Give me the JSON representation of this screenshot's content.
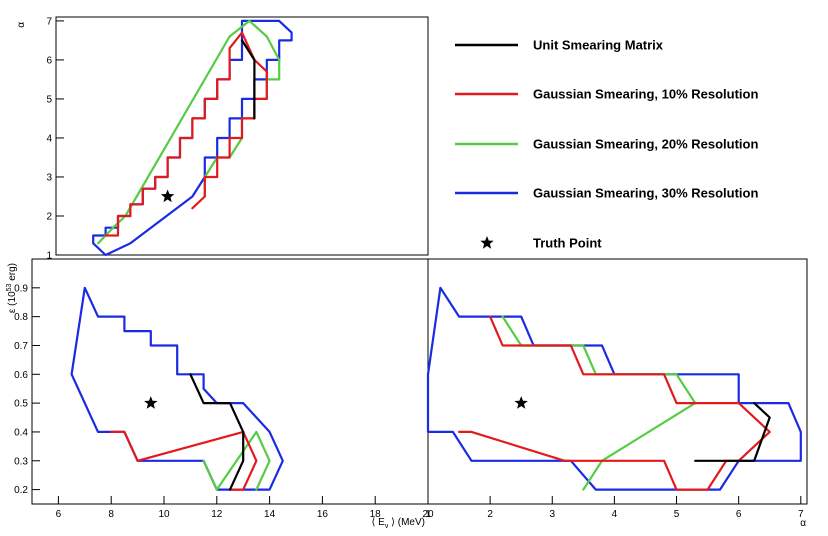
{
  "chart_data": [
    {
      "type": "line",
      "panel": "top-left",
      "xlabel": "",
      "ylabel": "α",
      "xlim": [
        5,
        20
      ],
      "ylim": [
        1,
        7.1
      ],
      "y_ticks": [
        "1",
        "2",
        "3",
        "4",
        "5",
        "6",
        "7"
      ],
      "series": [
        {
          "name": "Unit Smearing Matrix",
          "color": "#000000",
          "x": [
            12.5,
            13.0,
            13.0
          ],
          "y": [
            6.5,
            6.0,
            4.5
          ]
        },
        {
          "name": "Gaussian Smearing, 10% Resolution",
          "color": "#e31a1c",
          "x": [
            7.0,
            7.5,
            7.5,
            8.0,
            8.0,
            8.5,
            8.5,
            9.0,
            9.0,
            9.5,
            9.5,
            10.0,
            10.0,
            10.5,
            10.5,
            11.0,
            11.0,
            11.5,
            11.5,
            12.0,
            12.0,
            12.5,
            13.0,
            13.5,
            13.5,
            13.0,
            13.0,
            12.5,
            12.5,
            12.0,
            12.0,
            11.5,
            11.5,
            11.0,
            11.0,
            10.5
          ],
          "y": [
            1.5,
            1.5,
            2.0,
            2.0,
            2.3,
            2.3,
            2.7,
            2.7,
            3.0,
            3.0,
            3.5,
            3.5,
            4.0,
            4.0,
            4.5,
            4.5,
            5.0,
            5.0,
            5.5,
            5.5,
            6.3,
            6.7,
            6.0,
            5.7,
            5.0,
            5.0,
            4.5,
            4.5,
            4.0,
            4.0,
            3.5,
            3.5,
            3.0,
            3.0,
            2.5,
            2.2
          ]
        },
        {
          "name": "Gaussian Smearing, 20% Resolution",
          "color": "#55cc44",
          "x": [
            6.7,
            7.3,
            7.8,
            12.0,
            12.8,
            13.5,
            14.0,
            14.0,
            13.5,
            13.5,
            13.0,
            13.0,
            12.5,
            12.5,
            12.0,
            11.5,
            11.0,
            11.0
          ],
          "y": [
            1.3,
            1.7,
            2.0,
            6.6,
            7.0,
            6.6,
            6.0,
            5.5,
            5.5,
            5.0,
            5.0,
            4.5,
            4.5,
            4.0,
            3.5,
            3.5,
            3.0,
            2.5
          ]
        },
        {
          "name": "Gaussian Smearing, 30% Resolution",
          "color": "#1a2be3",
          "x": [
            7.0,
            6.5,
            6.5,
            7.0,
            7.0,
            7.5,
            7.5,
            8.0,
            8.0,
            8.5,
            8.5,
            9.0,
            9.0,
            9.5,
            9.5,
            10.0,
            10.0,
            10.5,
            10.5,
            11.0,
            11.0,
            11.5,
            11.5,
            12.0,
            12.0,
            12.5,
            12.5,
            14.0,
            14.5,
            14.5,
            14.0,
            14.0,
            13.5,
            13.5,
            13.0,
            13.0,
            12.5,
            12.5,
            12.0,
            12.0,
            11.5,
            11.5,
            11.0,
            11.0,
            10.5,
            8.0,
            7.0
          ],
          "y": [
            1.0,
            1.3,
            1.5,
            1.5,
            1.7,
            1.7,
            2.0,
            2.0,
            2.3,
            2.3,
            2.7,
            2.7,
            3.0,
            3.0,
            3.5,
            3.5,
            4.0,
            4.0,
            4.5,
            4.5,
            5.0,
            5.0,
            5.5,
            5.5,
            6.0,
            6.0,
            7.0,
            7.0,
            6.7,
            6.5,
            6.5,
            6.0,
            6.0,
            5.5,
            5.5,
            5.0,
            5.0,
            4.5,
            4.5,
            4.0,
            4.0,
            3.5,
            3.5,
            3.0,
            2.5,
            1.3,
            1.0
          ]
        }
      ],
      "truth_point": {
        "x": 9.5,
        "y": 2.5
      }
    },
    {
      "type": "line",
      "panel": "bottom-left",
      "xlabel": "⟨ E_ν ⟩ (MeV)",
      "ylabel": "ε (10^53 erg)",
      "xlim": [
        5,
        20
      ],
      "ylim": [
        0.15,
        1.0
      ],
      "x_ticks": [
        "6",
        "8",
        "10",
        "12",
        "14",
        "16",
        "18",
        "20"
      ],
      "y_ticks": [
        "0.2",
        "0.3",
        "0.4",
        "0.5",
        "0.6",
        "0.7",
        "0.8",
        "0.9"
      ],
      "series": [
        {
          "name": "Unit Smearing Matrix",
          "color": "#000000",
          "x": [
            11.0,
            11.5,
            12.5,
            13.0,
            13.0,
            12.5
          ],
          "y": [
            0.6,
            0.5,
            0.5,
            0.4,
            0.3,
            0.2
          ]
        },
        {
          "name": "Gaussian Smearing, 10% Resolution",
          "color": "#e31a1c",
          "x": [
            8.0,
            8.5,
            9.0,
            13.0,
            13.5,
            13.0,
            12.5
          ],
          "y": [
            0.4,
            0.4,
            0.3,
            0.4,
            0.3,
            0.2,
            0.2
          ]
        },
        {
          "name": "Gaussian Smearing, 20% Resolution",
          "color": "#55cc44",
          "x": [
            11.5,
            12.0,
            13.5,
            14.0,
            13.5
          ],
          "y": [
            0.3,
            0.2,
            0.4,
            0.3,
            0.2
          ]
        },
        {
          "name": "Gaussian Smearing, 30% Resolution",
          "color": "#1a2be3",
          "x": [
            6.5,
            7.0,
            7.5,
            8.5,
            8.5,
            9.5,
            9.5,
            10.5,
            10.5,
            11.5,
            11.5,
            12.0,
            13.0,
            14.0,
            14.5,
            14.0,
            12.0,
            11.5,
            9.0,
            8.5,
            7.5,
            6.5,
            6.5
          ],
          "y": [
            0.6,
            0.9,
            0.8,
            0.8,
            0.75,
            0.75,
            0.7,
            0.7,
            0.6,
            0.6,
            0.55,
            0.5,
            0.5,
            0.4,
            0.3,
            0.2,
            0.2,
            0.3,
            0.3,
            0.4,
            0.4,
            0.6,
            0.6
          ]
        }
      ],
      "truth_point": {
        "x": 9.5,
        "y": 0.5
      }
    },
    {
      "type": "line",
      "panel": "bottom-right",
      "xlabel": "α",
      "ylabel": "",
      "xlim": [
        1,
        7.1
      ],
      "ylim": [
        0.15,
        1.0
      ],
      "x_ticks": [
        "1",
        "2",
        "3",
        "4",
        "5",
        "6",
        "7"
      ],
      "series": [
        {
          "name": "Unit Smearing Matrix",
          "color": "#000000",
          "x": [
            6.25,
            6.5,
            6.25,
            5.3
          ],
          "y": [
            0.5,
            0.45,
            0.3,
            0.3
          ]
        },
        {
          "name": "Gaussian Smearing, 10% Resolution",
          "color": "#e31a1c",
          "x": [
            2.0,
            2.2,
            3.3,
            3.5,
            4.8,
            5.0,
            6.0,
            6.5,
            6.0,
            5.8,
            5.5,
            5.0,
            4.8,
            3.2,
            1.7,
            1.5
          ],
          "y": [
            0.8,
            0.7,
            0.7,
            0.6,
            0.6,
            0.5,
            0.5,
            0.4,
            0.3,
            0.3,
            0.2,
            0.2,
            0.3,
            0.3,
            0.4,
            0.4
          ]
        },
        {
          "name": "Gaussian Smearing, 20% Resolution",
          "color": "#55cc44",
          "x": [
            2.2,
            2.5,
            3.5,
            3.7,
            5.0,
            5.3,
            3.8,
            3.5
          ],
          "y": [
            0.8,
            0.7,
            0.7,
            0.6,
            0.6,
            0.5,
            0.3,
            0.2
          ]
        },
        {
          "name": "Gaussian Smearing, 30% Resolution",
          "color": "#1a2be3",
          "x": [
            1.0,
            1.2,
            1.5,
            2.5,
            2.7,
            3.8,
            4.0,
            6.0,
            6.0,
            6.8,
            7.0,
            7.0,
            6.8,
            6.0,
            5.7,
            3.7,
            3.3,
            1.7,
            1.4,
            1.0,
            1.0
          ],
          "y": [
            0.6,
            0.9,
            0.8,
            0.8,
            0.7,
            0.7,
            0.6,
            0.6,
            0.5,
            0.5,
            0.4,
            0.3,
            0.3,
            0.3,
            0.2,
            0.2,
            0.3,
            0.3,
            0.4,
            0.4,
            0.6
          ]
        }
      ],
      "truth_point": {
        "x": 2.5,
        "y": 0.5
      }
    }
  ],
  "legend": {
    "placement": "top-right",
    "entries": [
      {
        "label": "Unit Smearing Matrix",
        "color": "#000000",
        "marker": "line"
      },
      {
        "label": "Gaussian Smearing, 10% Resolution",
        "color": "#e31a1c",
        "marker": "line"
      },
      {
        "label": "Gaussian Smearing, 20% Resolution",
        "color": "#55cc44",
        "marker": "line"
      },
      {
        "label": "Gaussian Smearing, 30% Resolution",
        "color": "#1a2be3",
        "marker": "line"
      },
      {
        "label": "Truth Point",
        "color": "#000000",
        "marker": "star"
      }
    ]
  },
  "axis_titles": {
    "top_left_y": "α",
    "bottom_left_y": "ε (10",
    "bottom_left_y_sup": "53",
    "bottom_left_y_tail": " erg)",
    "bottom_left_x_pre": "⟨ E",
    "bottom_left_x_sub": "ν",
    "bottom_left_x_tail": " ⟩ (MeV)",
    "bottom_right_x": "α"
  }
}
